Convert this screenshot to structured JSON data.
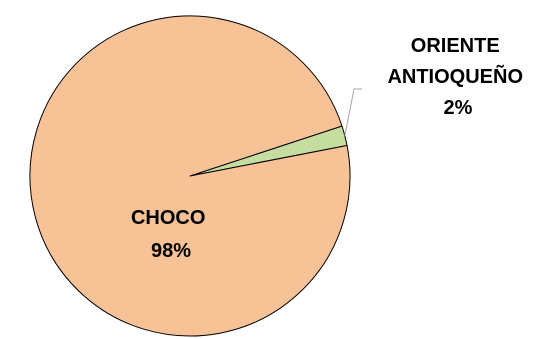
{
  "chart_data": {
    "type": "pie",
    "title": "",
    "slices": [
      {
        "name": "CHOCO",
        "value": 98,
        "label_lines": [
          "CHOCO",
          "98%"
        ],
        "color": "#F8C297"
      },
      {
        "name": "ORIENTE ANTIOQUEÑO",
        "value": 2,
        "label_lines": [
          "ORIENTE",
          "ANTIOQUEÑO",
          "2%"
        ],
        "color": "#C5DEA0"
      }
    ],
    "border_color": "#000000",
    "leader_color": "#A6A6A6",
    "legend": "none"
  }
}
